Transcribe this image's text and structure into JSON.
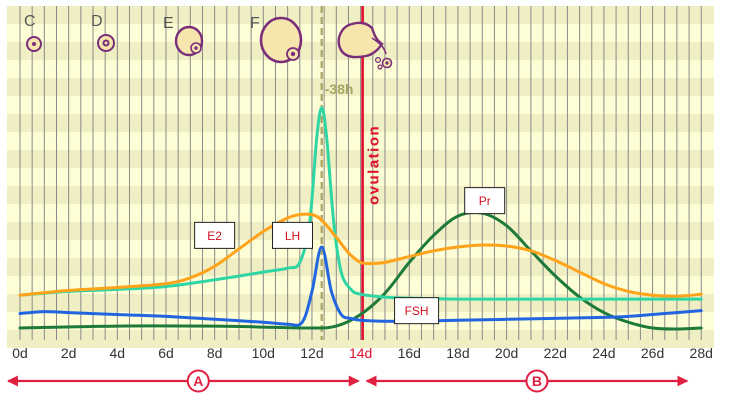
{
  "figure": {
    "follicle_labels": [
      "C",
      "D",
      "E",
      "F"
    ],
    "interval_label": "-38h",
    "ovulation_label": "ovulation",
    "phase_a_label": "A",
    "phase_b_label": "B",
    "colors": {
      "stripe_light": "#fdfdd6",
      "stripe_dark": "#efefc3",
      "grid": "#8a8a8a",
      "ovulation": "#e0102c",
      "dashed": "#a9a462",
      "e2": "#ffa31a",
      "lh": "#2fd6a3",
      "fsh": "#2166e0",
      "pr": "#1e7a3a",
      "follicle_fill": "#f6e6ae",
      "follicle_stroke": "#7a2e7a",
      "arrow": "#e02040"
    }
  },
  "chart_data": {
    "type": "line",
    "x_unit": "days of cycle",
    "x_ticks": [
      "0d",
      "2d",
      "4d",
      "6d",
      "8d",
      "10d",
      "12d",
      "14d",
      "16d",
      "18d",
      "20d",
      "22d",
      "24d",
      "26d",
      "28d"
    ],
    "highlight_tick": "14d",
    "ovulation_day": 14,
    "lh_peak_day": 12.4,
    "y_scale": "relative level (0 = baseline, 1 = LH peak), no axis printed",
    "series": [
      {
        "name": "E2",
        "x": [
          0,
          2,
          4,
          6,
          7,
          8,
          9,
          10,
          11,
          11.7,
          12.3,
          13,
          13.5,
          14,
          14.5,
          15,
          16,
          17,
          18,
          19,
          20,
          21,
          22,
          23,
          24,
          25,
          26,
          27,
          28
        ],
        "y": [
          0.03,
          0.055,
          0.07,
          0.09,
          0.12,
          0.18,
          0.27,
          0.36,
          0.43,
          0.45,
          0.43,
          0.33,
          0.25,
          0.2,
          0.195,
          0.2,
          0.23,
          0.26,
          0.28,
          0.29,
          0.285,
          0.26,
          0.21,
          0.15,
          0.09,
          0.05,
          0.03,
          0.025,
          0.035
        ]
      },
      {
        "name": "LH",
        "x": [
          0,
          2,
          4,
          6,
          8,
          10,
          11,
          11.5,
          11.9,
          12.2,
          12.4,
          12.6,
          12.9,
          13.2,
          13.6,
          14,
          15,
          16,
          18,
          20,
          22,
          24,
          26,
          28
        ],
        "y": [
          0.03,
          0.05,
          0.06,
          0.075,
          0.11,
          0.15,
          0.17,
          0.2,
          0.4,
          0.85,
          1.0,
          0.85,
          0.4,
          0.15,
          0.06,
          0.035,
          0.02,
          0.015,
          0.01,
          0.01,
          0.01,
          0.01,
          0.01,
          0.01
        ]
      },
      {
        "name": "FSH",
        "x": [
          0,
          1,
          2,
          4,
          6,
          8,
          10,
          11,
          11.6,
          12,
          12.4,
          12.8,
          13.2,
          13.6,
          14,
          15,
          16,
          18,
          20,
          22,
          24,
          25,
          26,
          27,
          28
        ],
        "y": [
          -0.065,
          -0.055,
          -0.06,
          -0.07,
          -0.08,
          -0.095,
          -0.11,
          -0.12,
          -0.11,
          0.05,
          0.28,
          0.05,
          -0.07,
          -0.09,
          -0.1,
          -0.105,
          -0.105,
          -0.1,
          -0.095,
          -0.09,
          -0.085,
          -0.08,
          -0.07,
          -0.06,
          -0.05
        ]
      },
      {
        "name": "Pr",
        "x": [
          0,
          4,
          8,
          10,
          12,
          13,
          14,
          15,
          16,
          17,
          18,
          19,
          20,
          21,
          22,
          23,
          24,
          25,
          26,
          27,
          28
        ],
        "y": [
          -0.14,
          -0.13,
          -0.13,
          -0.135,
          -0.14,
          -0.13,
          -0.07,
          0.04,
          0.2,
          0.34,
          0.44,
          0.455,
          0.39,
          0.26,
          0.13,
          0.02,
          -0.06,
          -0.11,
          -0.14,
          -0.145,
          -0.14
        ]
      }
    ],
    "series_labels": [
      {
        "text": "E2",
        "near_day": 8,
        "near_level": 0.34
      },
      {
        "text": "LH",
        "near_day": 11.2,
        "near_level": 0.34
      },
      {
        "text": "FSH",
        "near_day": 16.3,
        "near_level": -0.05
      },
      {
        "text": "Pr",
        "near_day": 19.1,
        "near_level": 0.52
      }
    ],
    "phases": [
      {
        "label": "A",
        "from_day": 0,
        "to_day": 14
      },
      {
        "label": "B",
        "from_day": 14,
        "to_day": 28
      }
    ]
  }
}
